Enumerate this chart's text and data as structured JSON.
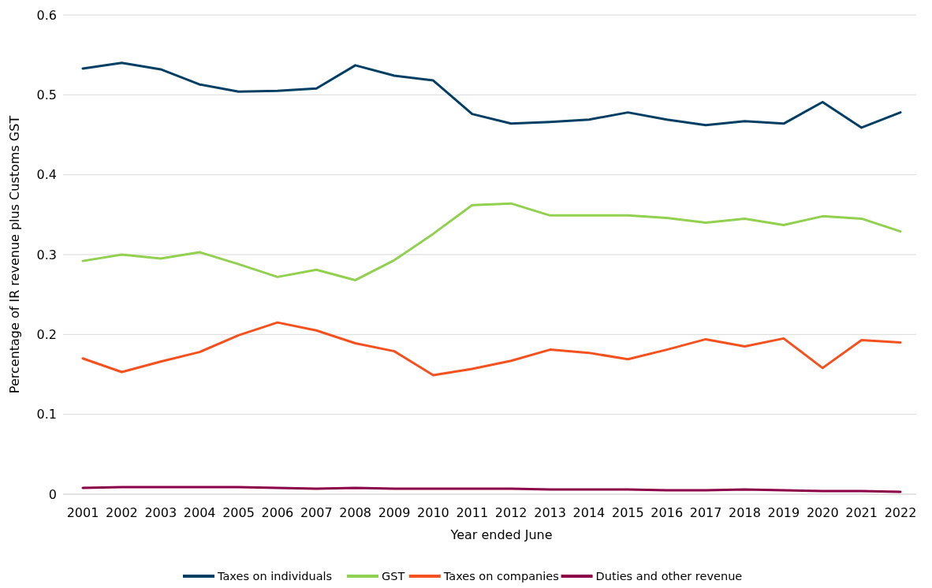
{
  "chart_data": {
    "type": "line",
    "xlabel": "Year ended June",
    "ylabel": "Percentage of IR revenue plus Customs GST",
    "categories": [
      "2001",
      "2002",
      "2003",
      "2004",
      "2005",
      "2006",
      "2007",
      "2008",
      "2009",
      "2010",
      "2011",
      "2012",
      "2013",
      "2014",
      "2015",
      "2016",
      "2017",
      "2018",
      "2019",
      "2020",
      "2021",
      "2022"
    ],
    "series": [
      {
        "name": "Taxes on individuals",
        "color": "#003f63",
        "values": [
          0.533,
          0.54,
          0.532,
          0.513,
          0.504,
          0.505,
          0.508,
          0.537,
          0.524,
          0.518,
          0.476,
          0.464,
          0.466,
          0.469,
          0.478,
          0.469,
          0.462,
          0.467,
          0.464,
          0.491,
          0.459,
          0.478
        ]
      },
      {
        "name": "GST",
        "color": "#92d050",
        "values": [
          0.292,
          0.3,
          0.295,
          0.303,
          0.288,
          0.272,
          0.281,
          0.268,
          0.293,
          0.326,
          0.362,
          0.364,
          0.349,
          0.349,
          0.349,
          0.346,
          0.34,
          0.345,
          0.337,
          0.348,
          0.345,
          0.329
        ]
      },
      {
        "name": "Taxes on companies",
        "color": "#f4511e",
        "values": [
          0.17,
          0.153,
          0.166,
          0.178,
          0.199,
          0.215,
          0.205,
          0.189,
          0.179,
          0.149,
          0.157,
          0.167,
          0.181,
          0.177,
          0.169,
          0.181,
          0.194,
          0.185,
          0.195,
          0.158,
          0.193,
          0.19
        ]
      },
      {
        "name": "Duties and other revenue",
        "color": "#8b0046",
        "values": [
          0.008,
          0.009,
          0.009,
          0.009,
          0.009,
          0.008,
          0.007,
          0.008,
          0.007,
          0.007,
          0.007,
          0.007,
          0.006,
          0.006,
          0.006,
          0.005,
          0.005,
          0.006,
          0.005,
          0.004,
          0.004,
          0.003
        ]
      }
    ],
    "ylim": [
      0,
      0.6
    ],
    "yticks": [
      {
        "value": 0,
        "label": "0"
      },
      0.1,
      0.2,
      0.3,
      0.4,
      0.5,
      0.6
    ],
    "grid": "y",
    "legend": "bottom",
    "marker": "none",
    "line_style": "solid"
  }
}
